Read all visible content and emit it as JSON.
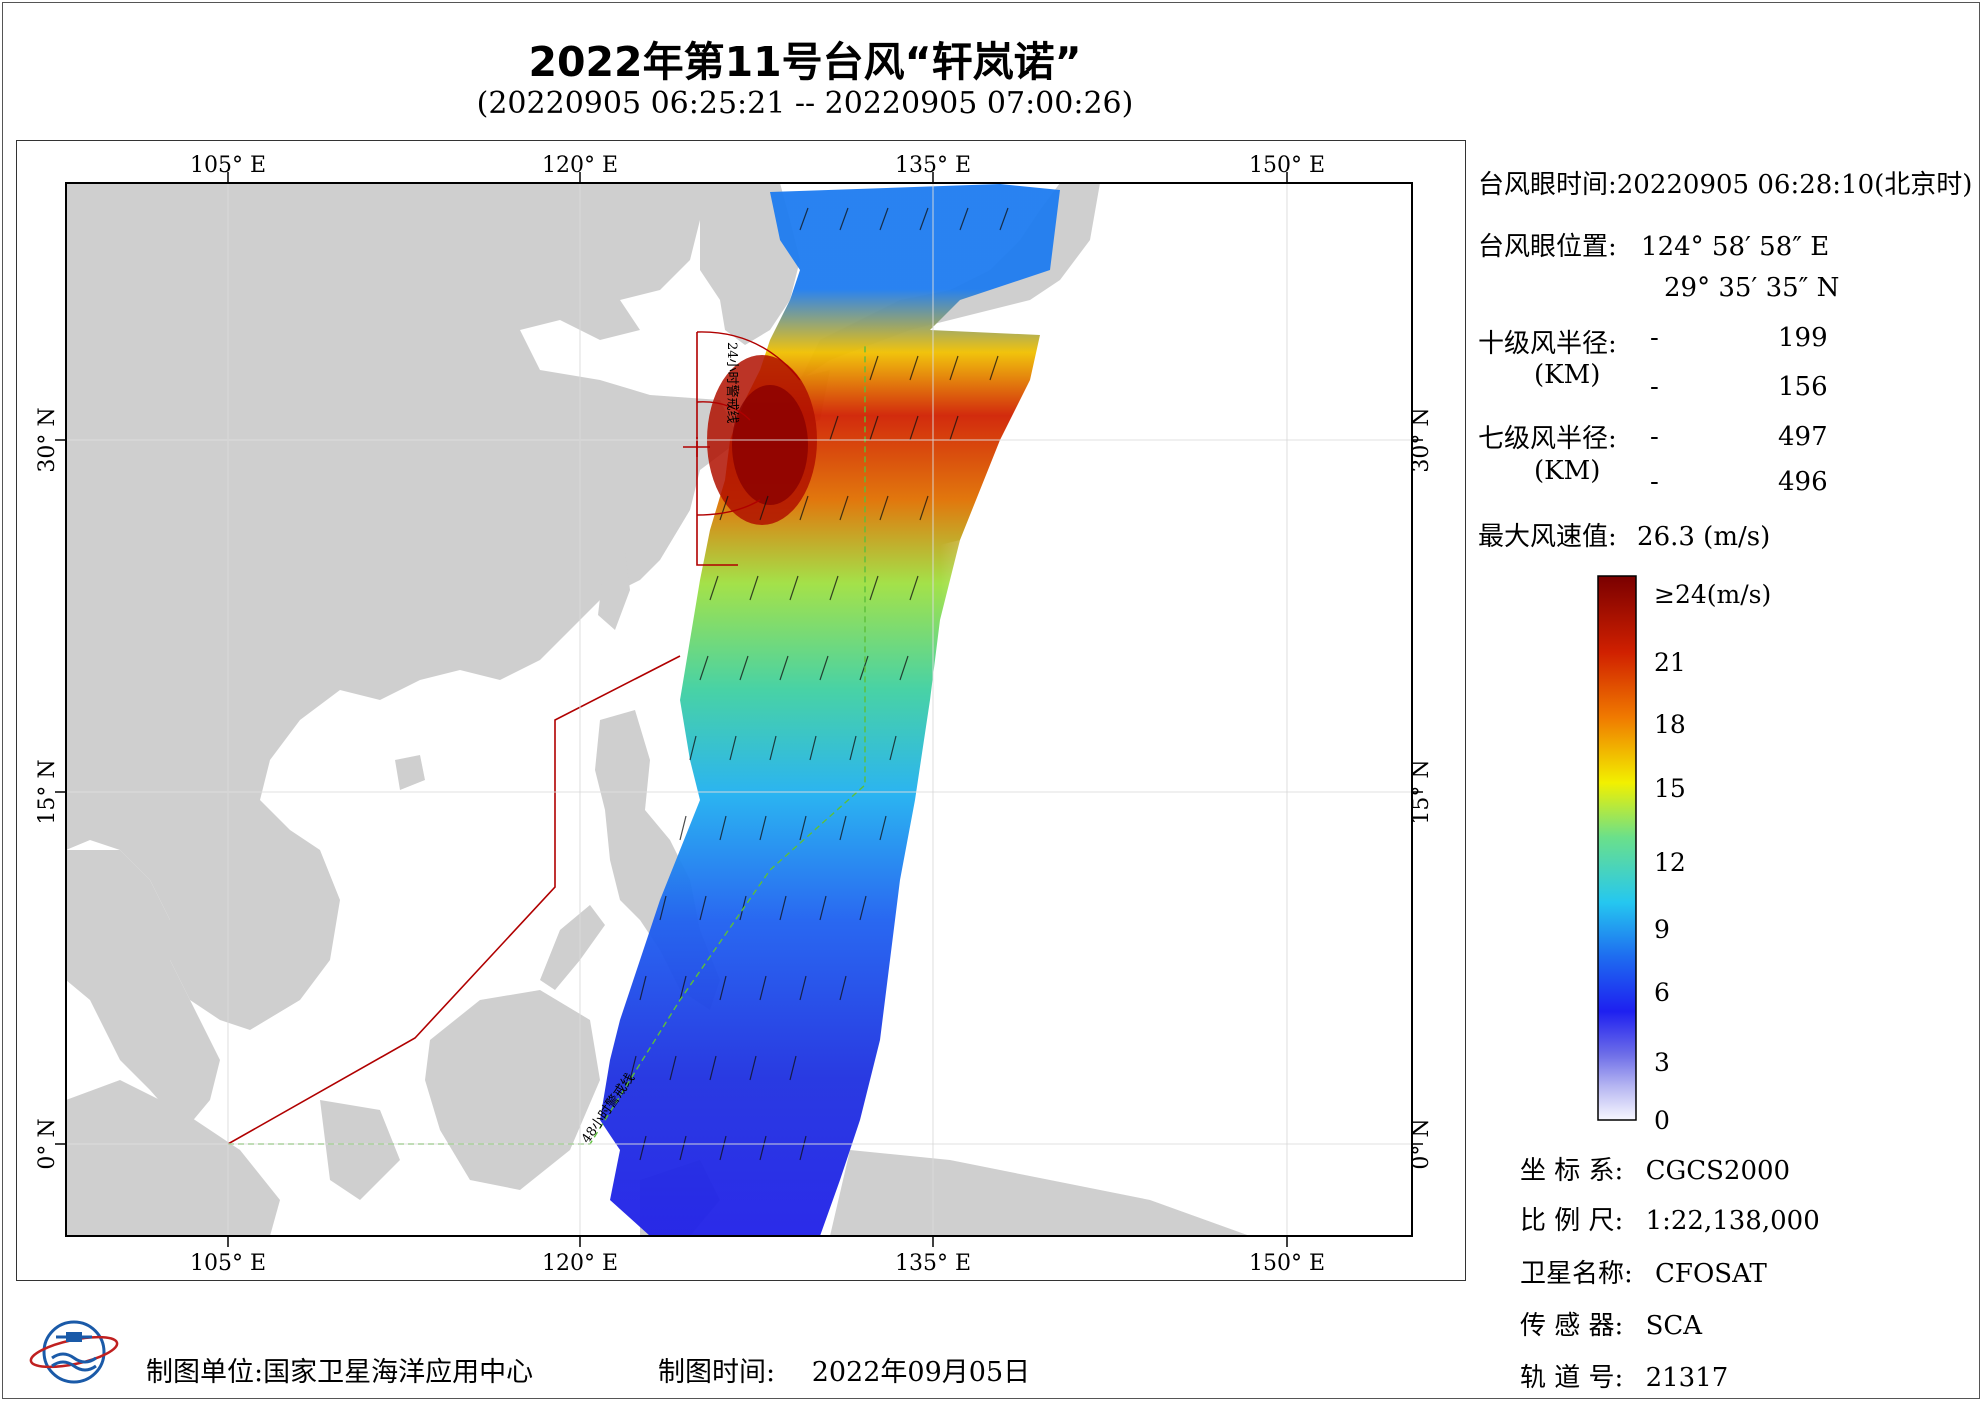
{
  "title": "2022年第11号台风“轩岚诺”",
  "subtitle": "(20220905 06:25:21 -- 20220905 07:00:26)",
  "map": {
    "lon_ticks": [
      "105° E",
      "120° E",
      "135° E",
      "150° E"
    ],
    "lat_ticks_left": [
      "30° N",
      "15° N",
      "0° N"
    ],
    "lat_ticks_right": [
      "30° N",
      "15° N",
      "0° N"
    ],
    "warning_line_24h": "24小时警戒线",
    "warning_line_48h": "48小时警戒线",
    "colors": {
      "land": "#cfcfcf",
      "sea": "#ffffff",
      "boundary": "#b00000",
      "warning": "#5cbf3a"
    }
  },
  "info": {
    "eye_time_label": "台风眼时间:",
    "eye_time_value": "20220905 06:28:10(北京时)",
    "eye_pos_label": "台风眼位置:",
    "eye_lon": "124° 58′ 58″ E",
    "eye_lat": "29° 35′ 35″ N",
    "r10_label": "十级风半径:",
    "km_label": "(KM)",
    "r10_a_dash": "-",
    "r10_a": "199",
    "r10_b_dash": "-",
    "r10_b": "156",
    "r7_label": "七级风半径:",
    "km_label2": "(KM)",
    "r7_a_dash": "-",
    "r7_a": "497",
    "r7_b_dash": "-",
    "r7_b": "496",
    "max_wind_label": "最大风速值:",
    "max_wind_value": "26.3 (m/s)"
  },
  "colorbar": {
    "labels": [
      "≥24(m/s)",
      "21",
      "18",
      "15",
      "12",
      "9",
      "6",
      "3",
      "0"
    ],
    "values": [
      24,
      21,
      18,
      15,
      12,
      9,
      6,
      3,
      0
    ],
    "colors": [
      "#f7f7ff",
      "#8a8af0",
      "#1e20f0",
      "#1e6cf0",
      "#25c7f0",
      "#6be08a",
      "#f2f000",
      "#f07a00",
      "#c81400",
      "#7a0000"
    ]
  },
  "meta": {
    "crs_label": "坐 标 系:",
    "crs_value": "CGCS2000",
    "scale_label": "比 例 尺:",
    "scale_value": "1:22,138,000",
    "sat_label": "卫星名称:",
    "sat_value": "CFOSAT",
    "sensor_label": "传 感 器:",
    "sensor_value": "SCA",
    "orbit_label": "轨 道 号:",
    "orbit_value": "21317"
  },
  "footer": {
    "unit_label": "制图单位:",
    "unit_value": "国家卫星海洋应用中心",
    "date_label": "制图时间:",
    "date_value": "2022年09月05日"
  }
}
